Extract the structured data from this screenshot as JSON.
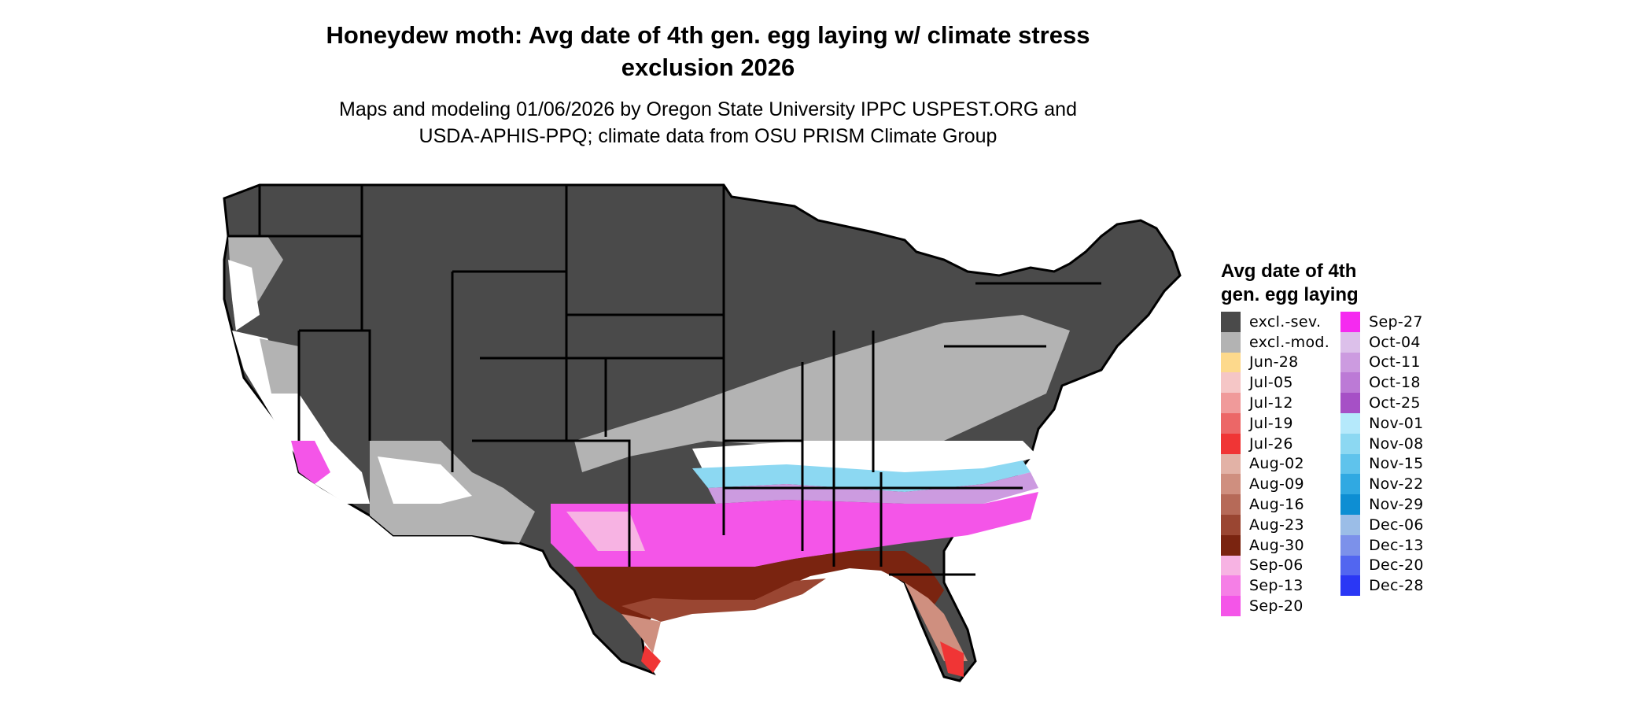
{
  "title": "Honeydew moth: Avg date of 4th gen. egg laying w/ climate stress exclusion 2026",
  "title_line1": "Honeydew moth: Avg date of 4th gen. egg laying w/ climate stress",
  "title_line2": "exclusion 2026",
  "subtitle_line1": "Maps and modeling 01/06/2026 by Oregon State University IPPC USPEST.ORG and",
  "subtitle_line2": "USDA-APHIS-PPQ; climate data from OSU PRISM Climate Group",
  "legend": {
    "title_line1": "Avg date of 4th",
    "title_line2": "gen. egg laying",
    "column1": [
      {
        "label": "excl.-sev.",
        "color": "#4a4a4a"
      },
      {
        "label": "excl.-mod.",
        "color": "#b3b3b3"
      },
      {
        "label": "Jun-28",
        "color": "#fdd98c"
      },
      {
        "label": "Jul-05",
        "color": "#f5c6c6"
      },
      {
        "label": "Jul-12",
        "color": "#f09a9a"
      },
      {
        "label": "Jul-19",
        "color": "#ec6767"
      },
      {
        "label": "Jul-26",
        "color": "#f03535"
      },
      {
        "label": "Aug-02",
        "color": "#e2b2a6"
      },
      {
        "label": "Aug-09",
        "color": "#cf8f7f"
      },
      {
        "label": "Aug-16",
        "color": "#b66a58"
      },
      {
        "label": "Aug-23",
        "color": "#9a4632"
      },
      {
        "label": "Aug-30",
        "color": "#7a2410"
      },
      {
        "label": "Sep-06",
        "color": "#f7b3e3"
      },
      {
        "label": "Sep-13",
        "color": "#f57fe6"
      },
      {
        "label": "Sep-20",
        "color": "#f455e8"
      }
    ],
    "column2": [
      {
        "label": "Sep-27",
        "color": "#f52af0"
      },
      {
        "label": "Oct-04",
        "color": "#dcc0ea"
      },
      {
        "label": "Oct-11",
        "color": "#cc9be0"
      },
      {
        "label": "Oct-18",
        "color": "#bc7ad6"
      },
      {
        "label": "Oct-25",
        "color": "#a650c6"
      },
      {
        "label": "Nov-01",
        "color": "#b5e9fb"
      },
      {
        "label": "Nov-08",
        "color": "#8cd8f2"
      },
      {
        "label": "Nov-15",
        "color": "#5fc3ec"
      },
      {
        "label": "Nov-22",
        "color": "#30a9e2"
      },
      {
        "label": "Nov-29",
        "color": "#0d8ed3"
      },
      {
        "label": "Dec-06",
        "color": "#9bbde7"
      },
      {
        "label": "Dec-13",
        "color": "#7c91ea"
      },
      {
        "label": "Dec-20",
        "color": "#5266f0"
      },
      {
        "label": "Dec-28",
        "color": "#2a37f5"
      }
    ]
  }
}
